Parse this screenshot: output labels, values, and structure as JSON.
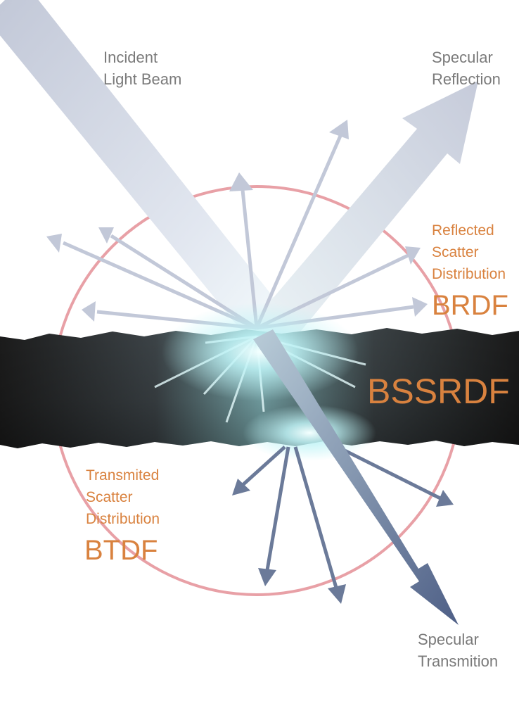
{
  "labels": {
    "incident": "Incident\nLight Beam",
    "specular_reflection": "Specular\nReflection",
    "reflected_scatter": "Reflected\nScatter\nDistribution",
    "brdf": "BRDF",
    "bssrdf": "BSSRDF",
    "transmitted_scatter": "Transmited\nScatter\nDistribution",
    "btdf": "BTDF",
    "specular_transmission": "Specular\nTransmition"
  },
  "colors": {
    "label_gray": "#7a7a7a",
    "accent_orange": "#d9823f",
    "circle_pink": "#e8a0a6",
    "arrow_light": "#c2c8d8",
    "arrow_dark": "#6b7a99",
    "material_dark": "#1f1f1f",
    "glow_cyan": "#bff3f6"
  }
}
